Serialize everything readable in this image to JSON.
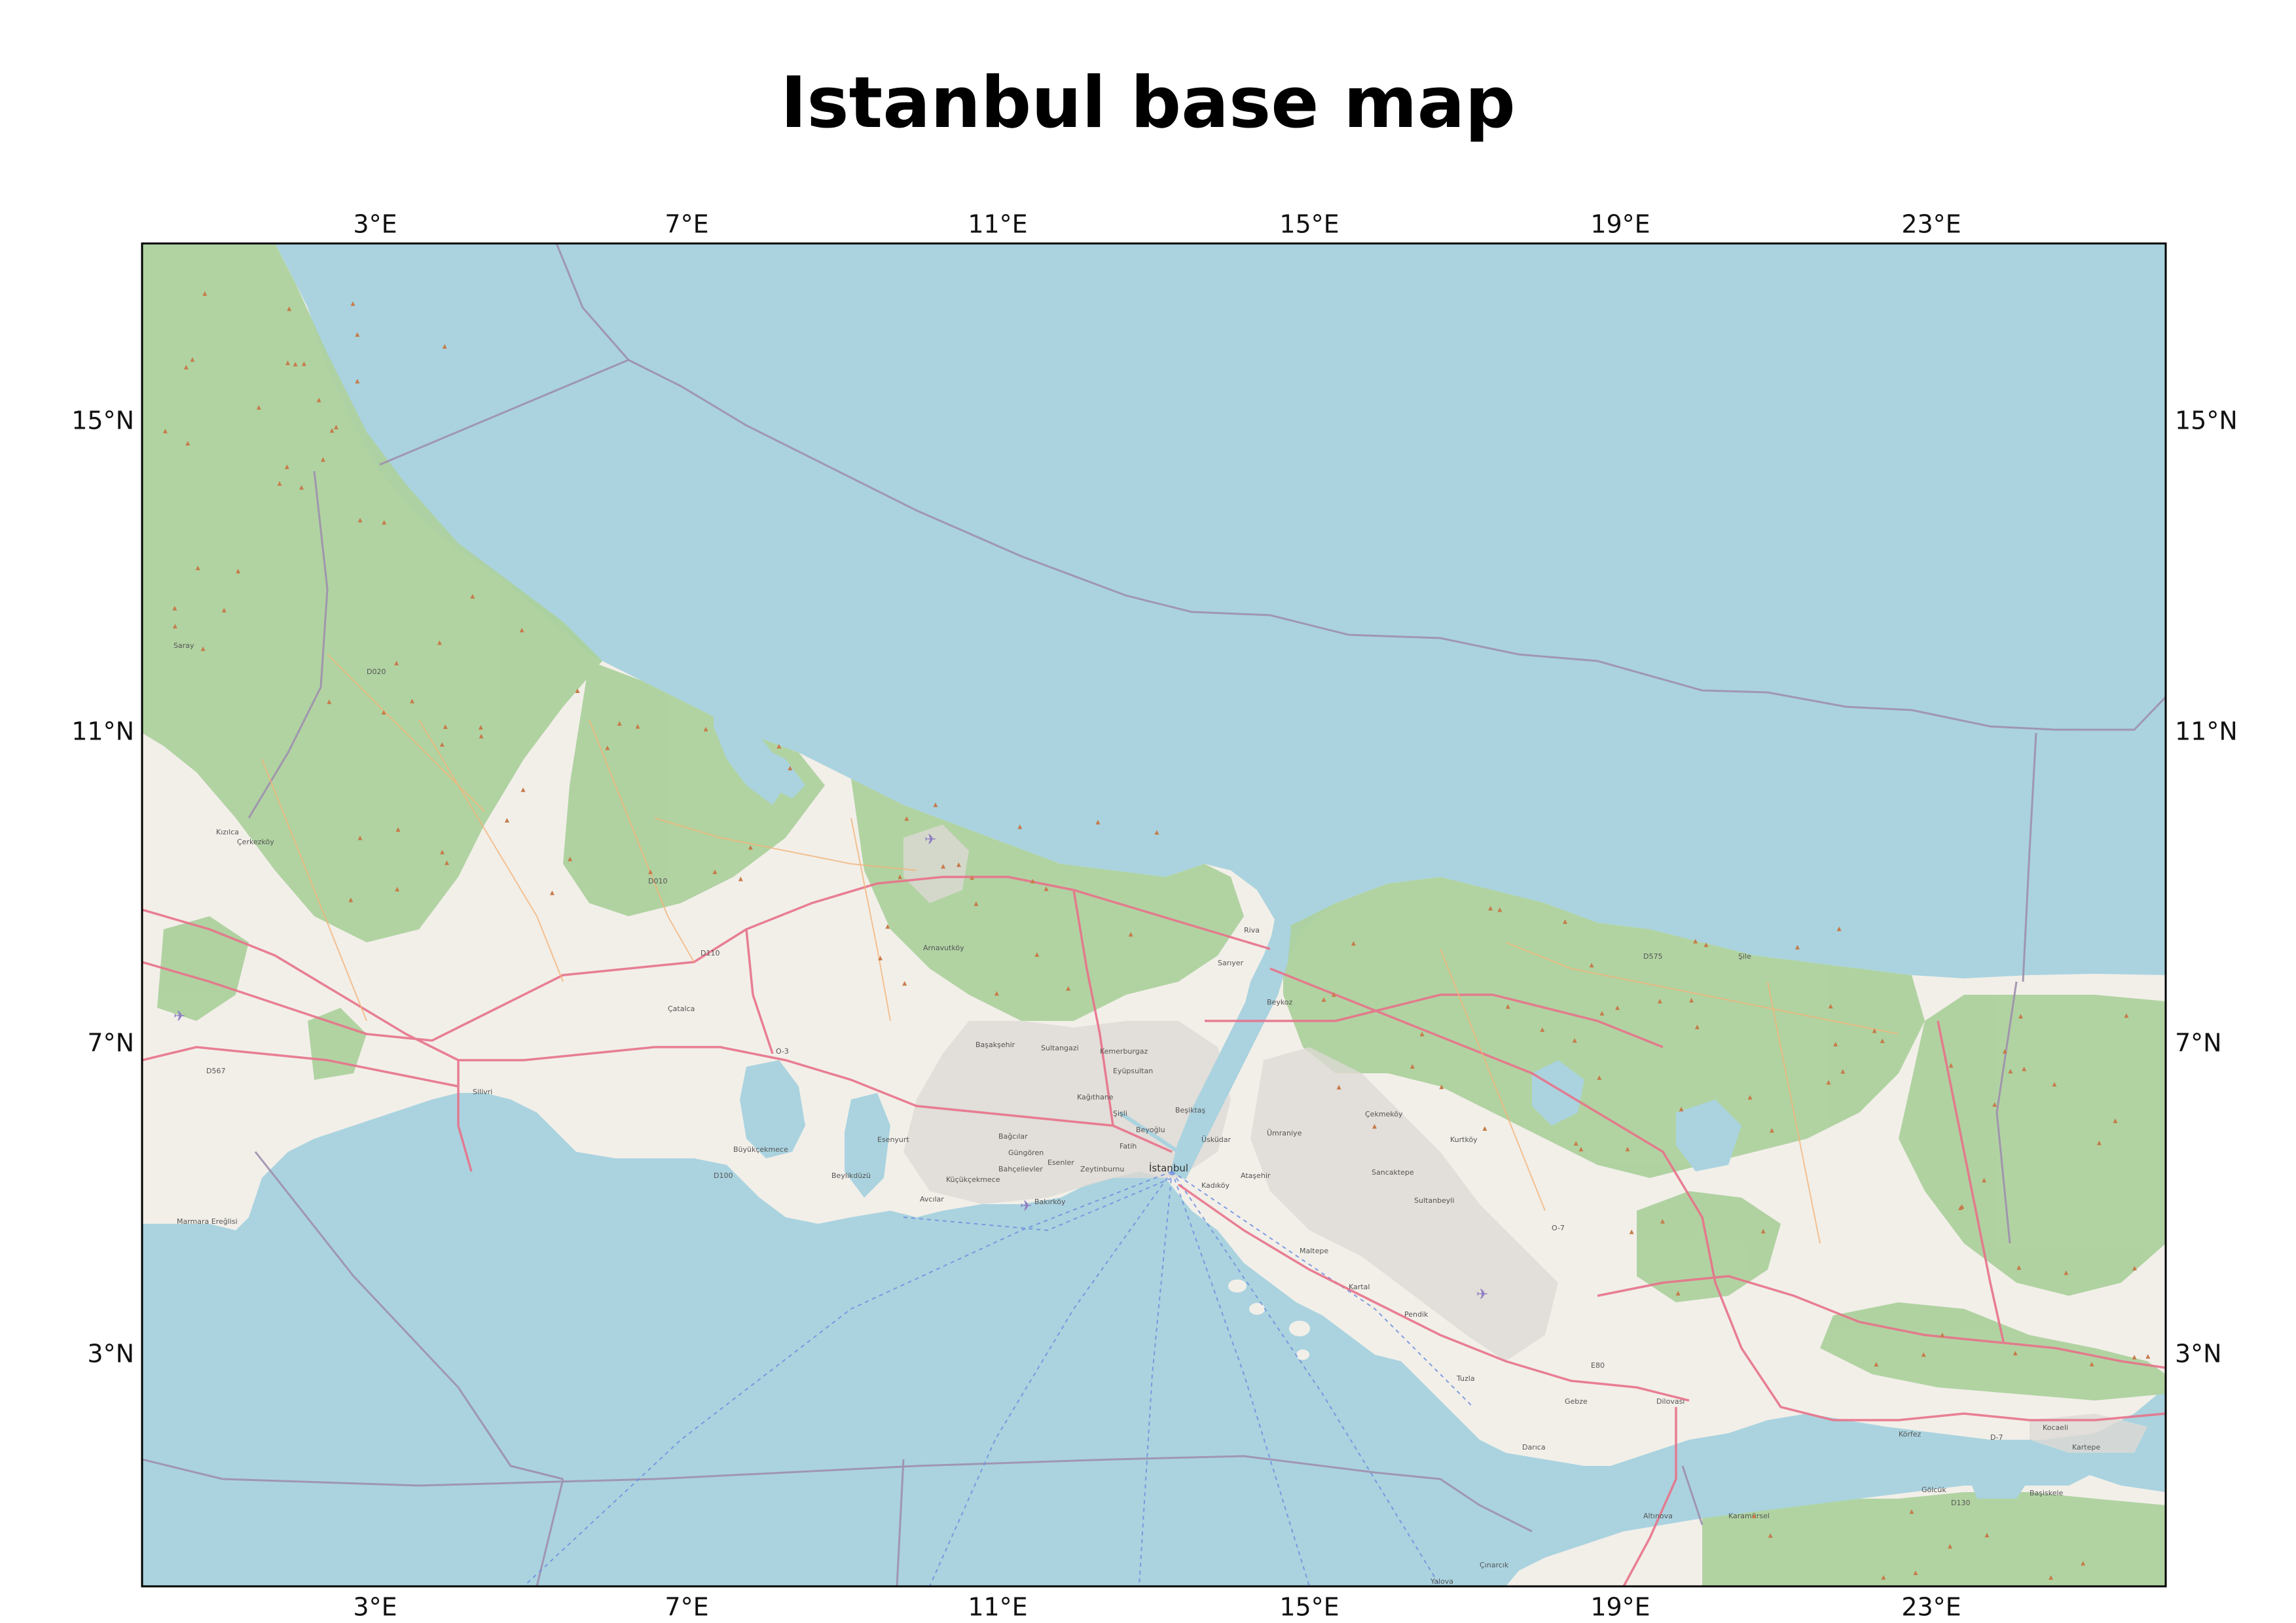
{
  "title": "Istanbul base map",
  "axes": {
    "x_ticks": [
      "3°E",
      "7°E",
      "11°E",
      "15°E",
      "19°E",
      "23°E"
    ],
    "y_ticks": [
      "15°N",
      "11°N",
      "7°N",
      "3°N"
    ]
  },
  "map": {
    "extent_lon": [
      0,
      26
    ],
    "extent_lat": [
      0,
      17.3
    ],
    "colors": {
      "sea": "#aad3df",
      "land": "#f2efe9",
      "forest": "#add19e",
      "road_major": "#e8728a",
      "road_minor": "#f2b47a",
      "boundary": "#9e8fae",
      "ferry": "#6d8fe0",
      "frame": "#000000"
    },
    "place_labels": [
      "Saray",
      "Kızılca",
      "Çerkezköy",
      "Çatalca",
      "Silivri",
      "Arnavutköy",
      "Başakşehir",
      "Sultangazi",
      "Esenyurt",
      "Beylikdüzü",
      "Avcılar",
      "Küçükçekmece",
      "Bağcılar",
      "Bahçelievler",
      "Zeytinburnu",
      "Eyüpsultan",
      "Sarıyer",
      "Beşiktaş",
      "Beykoz",
      "Üsküdar",
      "Kadıköy",
      "Ataşehir",
      "Ümraniye",
      "Çekmeköy",
      "Sancaktepe",
      "Sultanbeyli",
      "Maltepe",
      "Kartal",
      "Pendik",
      "Tuzla",
      "Gebze",
      "Darıca",
      "Dilovası",
      "Kocaeli",
      "Körfez",
      "Kartepe",
      "Şile",
      "Yalova",
      "Çınarcık",
      "Altınova",
      "Karamürsel",
      "Başiskele",
      "Gölcük",
      "Marmara Ereğlisi",
      "Büyükçekmece",
      "Beyoğlu",
      "Fatih",
      "Şişli",
      "Kağıthane",
      "Bakırköy",
      "İstanbul",
      "Esenler",
      "Güngören",
      "Kemerburgaz",
      "Riva",
      "Kurtköy"
    ],
    "road_labels": [
      "D020",
      "D100",
      "D010",
      "O-3",
      "O-7",
      "E80",
      "D110",
      "D130",
      "D567",
      "D575",
      "D-7"
    ],
    "city_label": "İstanbul"
  }
}
